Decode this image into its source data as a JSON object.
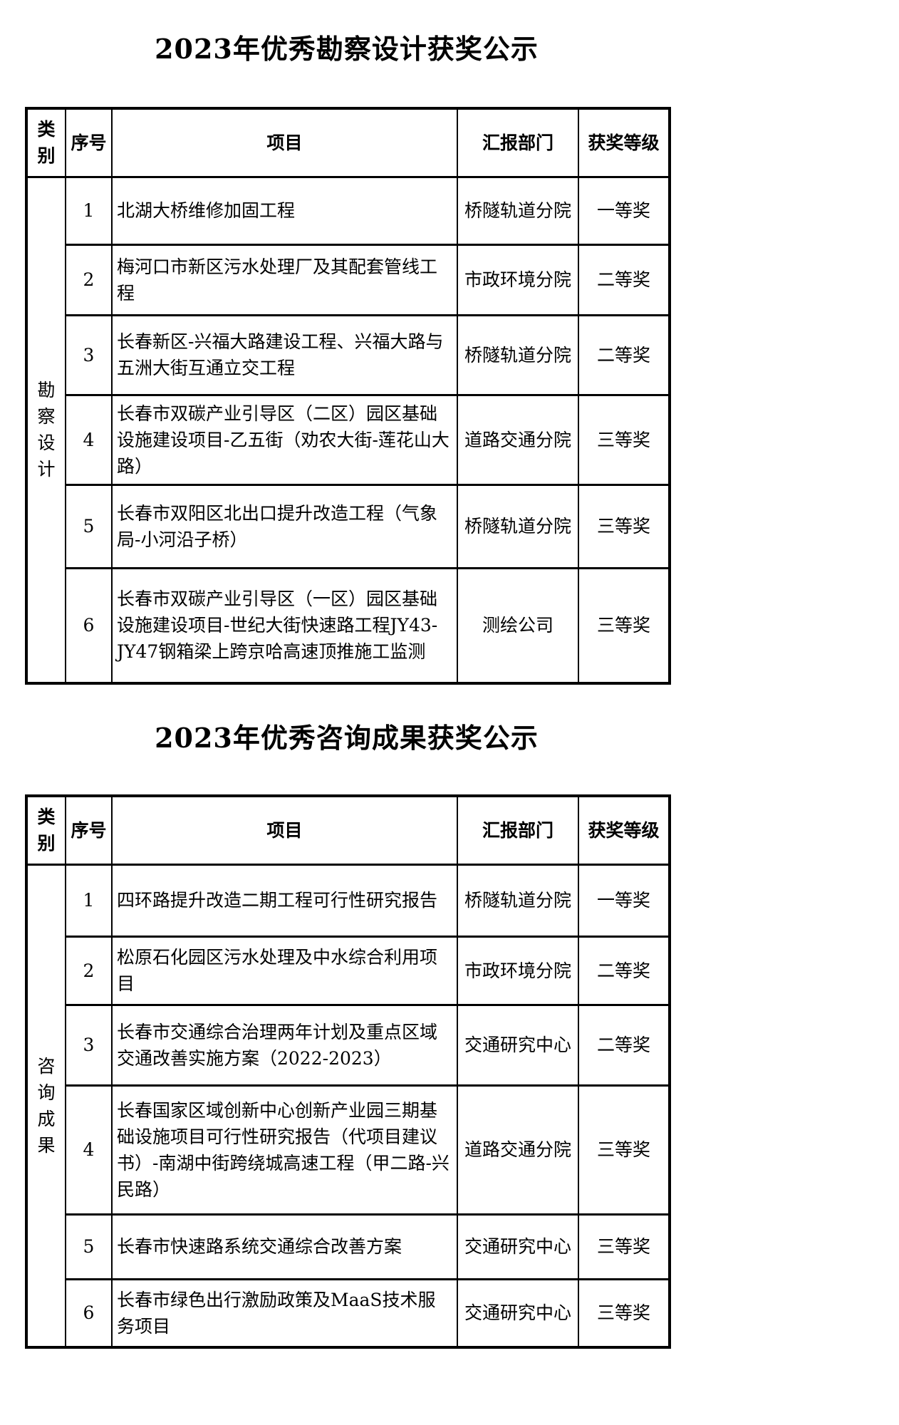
{
  "document": {
    "sections": [
      {
        "title": "2023年优秀勘察设计获奖公示",
        "table": {
          "headers": {
            "category": "类别",
            "index": "序号",
            "project": "项目",
            "department": "汇报部门",
            "award": "获奖等级"
          },
          "category": "勘察设计",
          "rows": [
            {
              "index": "1",
              "project": "北湖大桥维修加固工程",
              "department": "桥隧轨道分院",
              "award": "一等奖"
            },
            {
              "index": "2",
              "project": "梅河口市新区污水处理厂及其配套管线工程",
              "department": "市政环境分院",
              "award": "二等奖"
            },
            {
              "index": "3",
              "project": "长春新区-兴福大路建设工程、兴福大路与五洲大街互通立交工程",
              "department": "桥隧轨道分院",
              "award": "二等奖"
            },
            {
              "index": "4",
              "project": "长春市双碳产业引导区（二区）园区基础设施建设项目-乙五街（劝农大街-莲花山大路）",
              "department": "道路交通分院",
              "award": "三等奖"
            },
            {
              "index": "5",
              "project": "长春市双阳区北出口提升改造工程（气象局-小河沿子桥）",
              "department": "桥隧轨道分院",
              "award": "三等奖"
            },
            {
              "index": "6",
              "project": "长春市双碳产业引导区（一区）园区基础设施建设项目-世纪大街快速路工程JY43-JY47钢箱梁上跨京哈高速顶推施工监测",
              "department": "测绘公司",
              "award": "三等奖"
            }
          ]
        }
      },
      {
        "title": "2023年优秀咨询成果获奖公示",
        "table": {
          "headers": {
            "category": "类别",
            "index": "序号",
            "project": "项目",
            "department": "汇报部门",
            "award": "获奖等级"
          },
          "category": "咨询成果",
          "rows": [
            {
              "index": "1",
              "project": "四环路提升改造二期工程可行性研究报告",
              "department": "桥隧轨道分院",
              "award": "一等奖"
            },
            {
              "index": "2",
              "project": "松原石化园区污水处理及中水综合利用项目",
              "department": "市政环境分院",
              "award": "二等奖"
            },
            {
              "index": "3",
              "project": "长春市交通综合治理两年计划及重点区域交通改善实施方案（2022-2023）",
              "department": "交通研究中心",
              "award": "二等奖"
            },
            {
              "index": "4",
              "project": "长春国家区域创新中心创新产业园三期基础设施项目可行性研究报告（代项目建议书）-南湖中街跨绕城高速工程（甲二路-兴民路）",
              "department": "道路交通分院",
              "award": "三等奖"
            },
            {
              "index": "5",
              "project": "长春市快速路系统交通综合改善方案",
              "department": "交通研究中心",
              "award": "三等奖"
            },
            {
              "index": "6",
              "project": "长春市绿色出行激励政策及MaaS技术服务项目",
              "department": "交通研究中心",
              "award": "三等奖"
            }
          ]
        }
      }
    ]
  }
}
